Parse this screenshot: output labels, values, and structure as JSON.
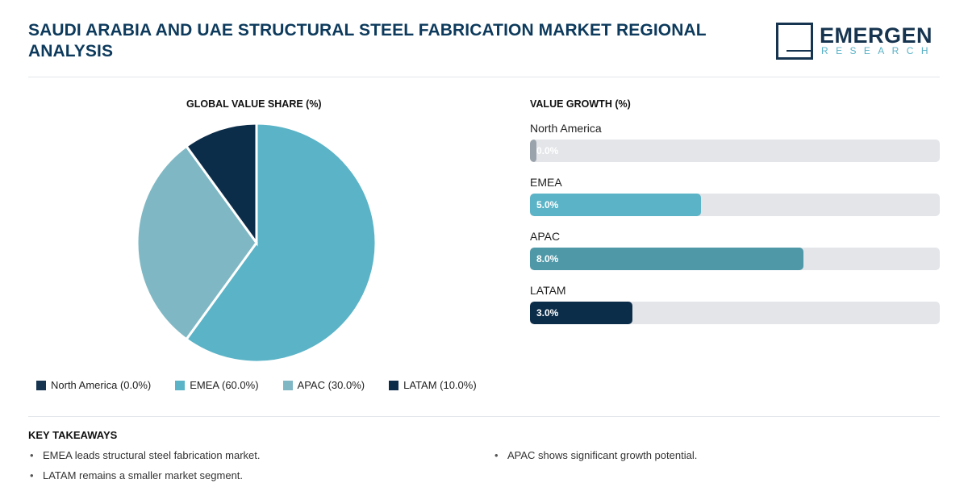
{
  "header": {
    "title": "SAUDI ARABIA AND UAE STRUCTURAL STEEL FABRICATION MARKET REGIONAL ANALYSIS",
    "logo_main": "EMERGEN",
    "logo_sub": "RESEARCH"
  },
  "pie_section": {
    "title": "GLOBAL VALUE SHARE (%)",
    "legend": [
      {
        "label": "North America (0.0%)",
        "color": "#16344f"
      },
      {
        "label": "EMEA (60.0%)",
        "color": "#5ab3c6"
      },
      {
        "label": "APAC (30.0%)",
        "color": "#7fb8c4"
      },
      {
        "label": "LATAM (10.0%)",
        "color": "#0c2d4a"
      }
    ]
  },
  "growth_section": {
    "title": "VALUE GROWTH (%)",
    "bars": [
      {
        "label": "North America",
        "value_text": "0.0%",
        "color": "#9aa3ab"
      },
      {
        "label": "EMEA",
        "value_text": "5.0%",
        "color": "#5ab3c6"
      },
      {
        "label": "APAC",
        "value_text": "8.0%",
        "color": "#4e98a8"
      },
      {
        "label": "LATAM",
        "value_text": "3.0%",
        "color": "#0c2d4a"
      }
    ]
  },
  "takeaways": {
    "title": "KEY TAKEAWAYS",
    "items": [
      "EMEA leads structural steel fabrication market.",
      "LATAM remains a smaller market segment.",
      "APAC shows significant growth potential."
    ]
  },
  "chart_data": [
    {
      "type": "pie",
      "title": "GLOBAL VALUE SHARE (%)",
      "categories": [
        "North America",
        "EMEA",
        "APAC",
        "LATAM"
      ],
      "values": [
        0.0,
        60.0,
        30.0,
        10.0
      ],
      "colors": [
        "#16344f",
        "#5ab3c6",
        "#7fb8c4",
        "#0c2d4a"
      ],
      "legend": "bottom"
    },
    {
      "type": "bar",
      "orientation": "horizontal",
      "title": "VALUE GROWTH (%)",
      "categories": [
        "North America",
        "EMEA",
        "APAC",
        "LATAM"
      ],
      "values": [
        0.0,
        5.0,
        8.0,
        3.0
      ],
      "xlim": [
        0,
        12
      ],
      "colors": [
        "#9aa3ab",
        "#5ab3c6",
        "#4e98a8",
        "#0c2d4a"
      ]
    }
  ]
}
